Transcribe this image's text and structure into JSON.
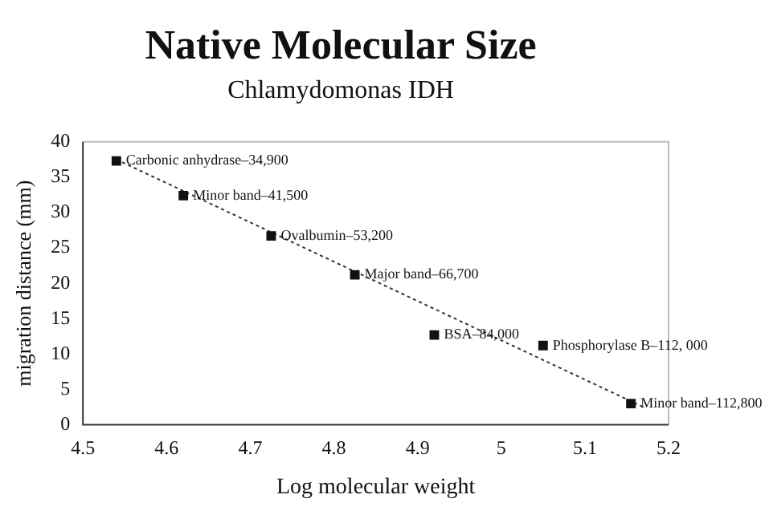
{
  "chart_data": {
    "type": "scatter",
    "title": "Native Molecular Size",
    "subtitle": "Chlamydomonas IDH",
    "xlabel": "Log molecular weight",
    "ylabel": "migration distance (mm)",
    "series": [
      {
        "color": "#111111",
        "marker": "square",
        "x": [
          4.54,
          4.62,
          4.725,
          4.825,
          4.92,
          5.05,
          5.155
        ],
        "values": [
          37.3,
          32.4,
          26.7,
          21.2,
          12.7,
          11.2,
          3
        ]
      },
      {
        "type": "line",
        "color": "#333333",
        "marker": "none",
        "line_style": "dotted",
        "x": [
          4.54,
          5.17
        ],
        "values": [
          37.5,
          2.5
        ]
      }
    ],
    "annotations": [
      {
        "text": "Carbonic anhydrase–34,900",
        "x": 4.54,
        "y": 37.3
      },
      {
        "text": "Minor band–41,500",
        "x": 4.62,
        "y": 32.4
      },
      {
        "text": "Ovalbumin–53,200",
        "x": 4.725,
        "y": 26.7
      },
      {
        "text": "Major band–66,700",
        "x": 4.825,
        "y": 21.2
      },
      {
        "text": "BSA–84,000",
        "x": 4.92,
        "y": 12.7
      },
      {
        "text": "Phosphorylase B–112, 000",
        "x": 5.05,
        "y": 11.2
      },
      {
        "text": "Minor band–112,800",
        "x": 5.155,
        "y": 3
      }
    ],
    "xlim": [
      4.5,
      5.2
    ],
    "xticks": [
      4.5,
      4.6,
      4.7,
      4.8,
      4.9,
      5,
      5.1,
      5.2
    ],
    "ylim": [
      0,
      40
    ],
    "yticks": [
      0,
      5,
      10,
      15,
      20,
      25,
      30,
      35,
      40
    ],
    "grid": false,
    "legend": false
  }
}
